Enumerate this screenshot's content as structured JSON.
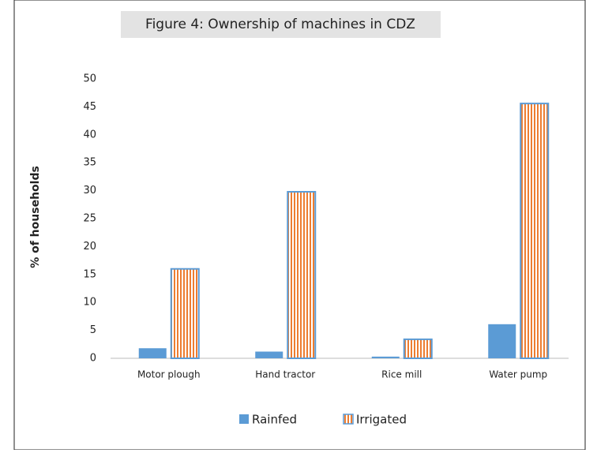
{
  "chart_data": {
    "type": "bar",
    "title": "Figure 4: Ownership of machines in CDZ",
    "ylabel": "% of households",
    "categories": [
      "Motor plough",
      "Hand tractor",
      "Rice mill",
      "Water pump"
    ],
    "series": [
      {
        "name": "Rainfed",
        "color": "#5b9bd5",
        "values": [
          1.8,
          1.2,
          0.3,
          6.1
        ]
      },
      {
        "name": "Irrigated",
        "color": "#ed7d31",
        "edgecolor": "#5b9bd5",
        "hatch": "vertical",
        "values": [
          16.0,
          29.8,
          3.4,
          45.6
        ]
      }
    ],
    "ylim": [
      0,
      50
    ],
    "yticks": [
      0,
      5,
      10,
      15,
      20,
      25,
      30,
      35,
      40,
      45,
      50
    ],
    "grid": false,
    "legend": "bottom"
  }
}
